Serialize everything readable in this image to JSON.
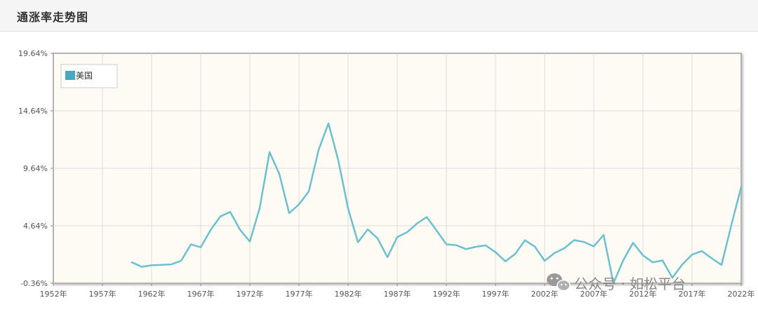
{
  "header": {
    "title": "通涨率走势图"
  },
  "watermark": {
    "text": "公众号 · 如松平台",
    "icon": "wechat-icon"
  },
  "colors": {
    "line": "#6cc0d0",
    "plot_bg": "#fdfbf3",
    "legend_swatch": "#4aa8c0",
    "grid": "#dddddd"
  },
  "chart_data": {
    "type": "line",
    "title": "通涨率走势图",
    "xlabel": "",
    "ylabel": "",
    "xlim": [
      1952,
      2022
    ],
    "ylim": [
      -0.36,
      19.64
    ],
    "y_ticks": [
      "19.64%",
      "14.64%",
      "9.64%",
      "4.64%",
      "-0.36%"
    ],
    "y_tick_values": [
      19.64,
      14.64,
      9.64,
      4.64,
      -0.36
    ],
    "x_ticks": [
      "1952年",
      "1957年",
      "1962年",
      "1967年",
      "1972年",
      "1977年",
      "1982年",
      "1987年",
      "1992年",
      "1997年",
      "2002年",
      "2007年",
      "2012年",
      "2017年",
      "2022年"
    ],
    "x_tick_values": [
      1952,
      1957,
      1962,
      1967,
      1972,
      1977,
      1982,
      1987,
      1992,
      1997,
      2002,
      2007,
      2012,
      2017,
      2022
    ],
    "grid": true,
    "legend_position": "top-left",
    "series": [
      {
        "name": "美国",
        "x": [
          1960,
          1961,
          1962,
          1963,
          1964,
          1965,
          1966,
          1967,
          1968,
          1969,
          1970,
          1971,
          1972,
          1973,
          1974,
          1975,
          1976,
          1977,
          1978,
          1979,
          1980,
          1981,
          1982,
          1983,
          1984,
          1985,
          1986,
          1987,
          1988,
          1989,
          1990,
          1991,
          1992,
          1993,
          1994,
          1995,
          1996,
          1997,
          1998,
          1999,
          2000,
          2001,
          2002,
          2003,
          2004,
          2005,
          2006,
          2007,
          2008,
          2009,
          2010,
          2011,
          2012,
          2013,
          2014,
          2015,
          2016,
          2017,
          2018,
          2019,
          2020,
          2021,
          2022
        ],
        "values": [
          1.46,
          1.07,
          1.2,
          1.24,
          1.28,
          1.59,
          3.02,
          2.77,
          4.27,
          5.46,
          5.84,
          4.29,
          3.27,
          6.18,
          11.05,
          9.14,
          5.74,
          6.5,
          7.63,
          11.25,
          13.55,
          10.33,
          6.13,
          3.21,
          4.32,
          3.55,
          1.9,
          3.66,
          4.08,
          4.83,
          5.4,
          4.23,
          3.03,
          2.95,
          2.61,
          2.81,
          2.93,
          2.34,
          1.55,
          2.19,
          3.38,
          2.83,
          1.59,
          2.27,
          2.68,
          3.39,
          3.23,
          2.85,
          3.84,
          -0.36,
          1.64,
          3.16,
          2.07,
          1.46,
          1.62,
          0.12,
          1.26,
          2.13,
          2.44,
          1.81,
          1.23,
          4.7,
          8.0
        ]
      }
    ]
  }
}
